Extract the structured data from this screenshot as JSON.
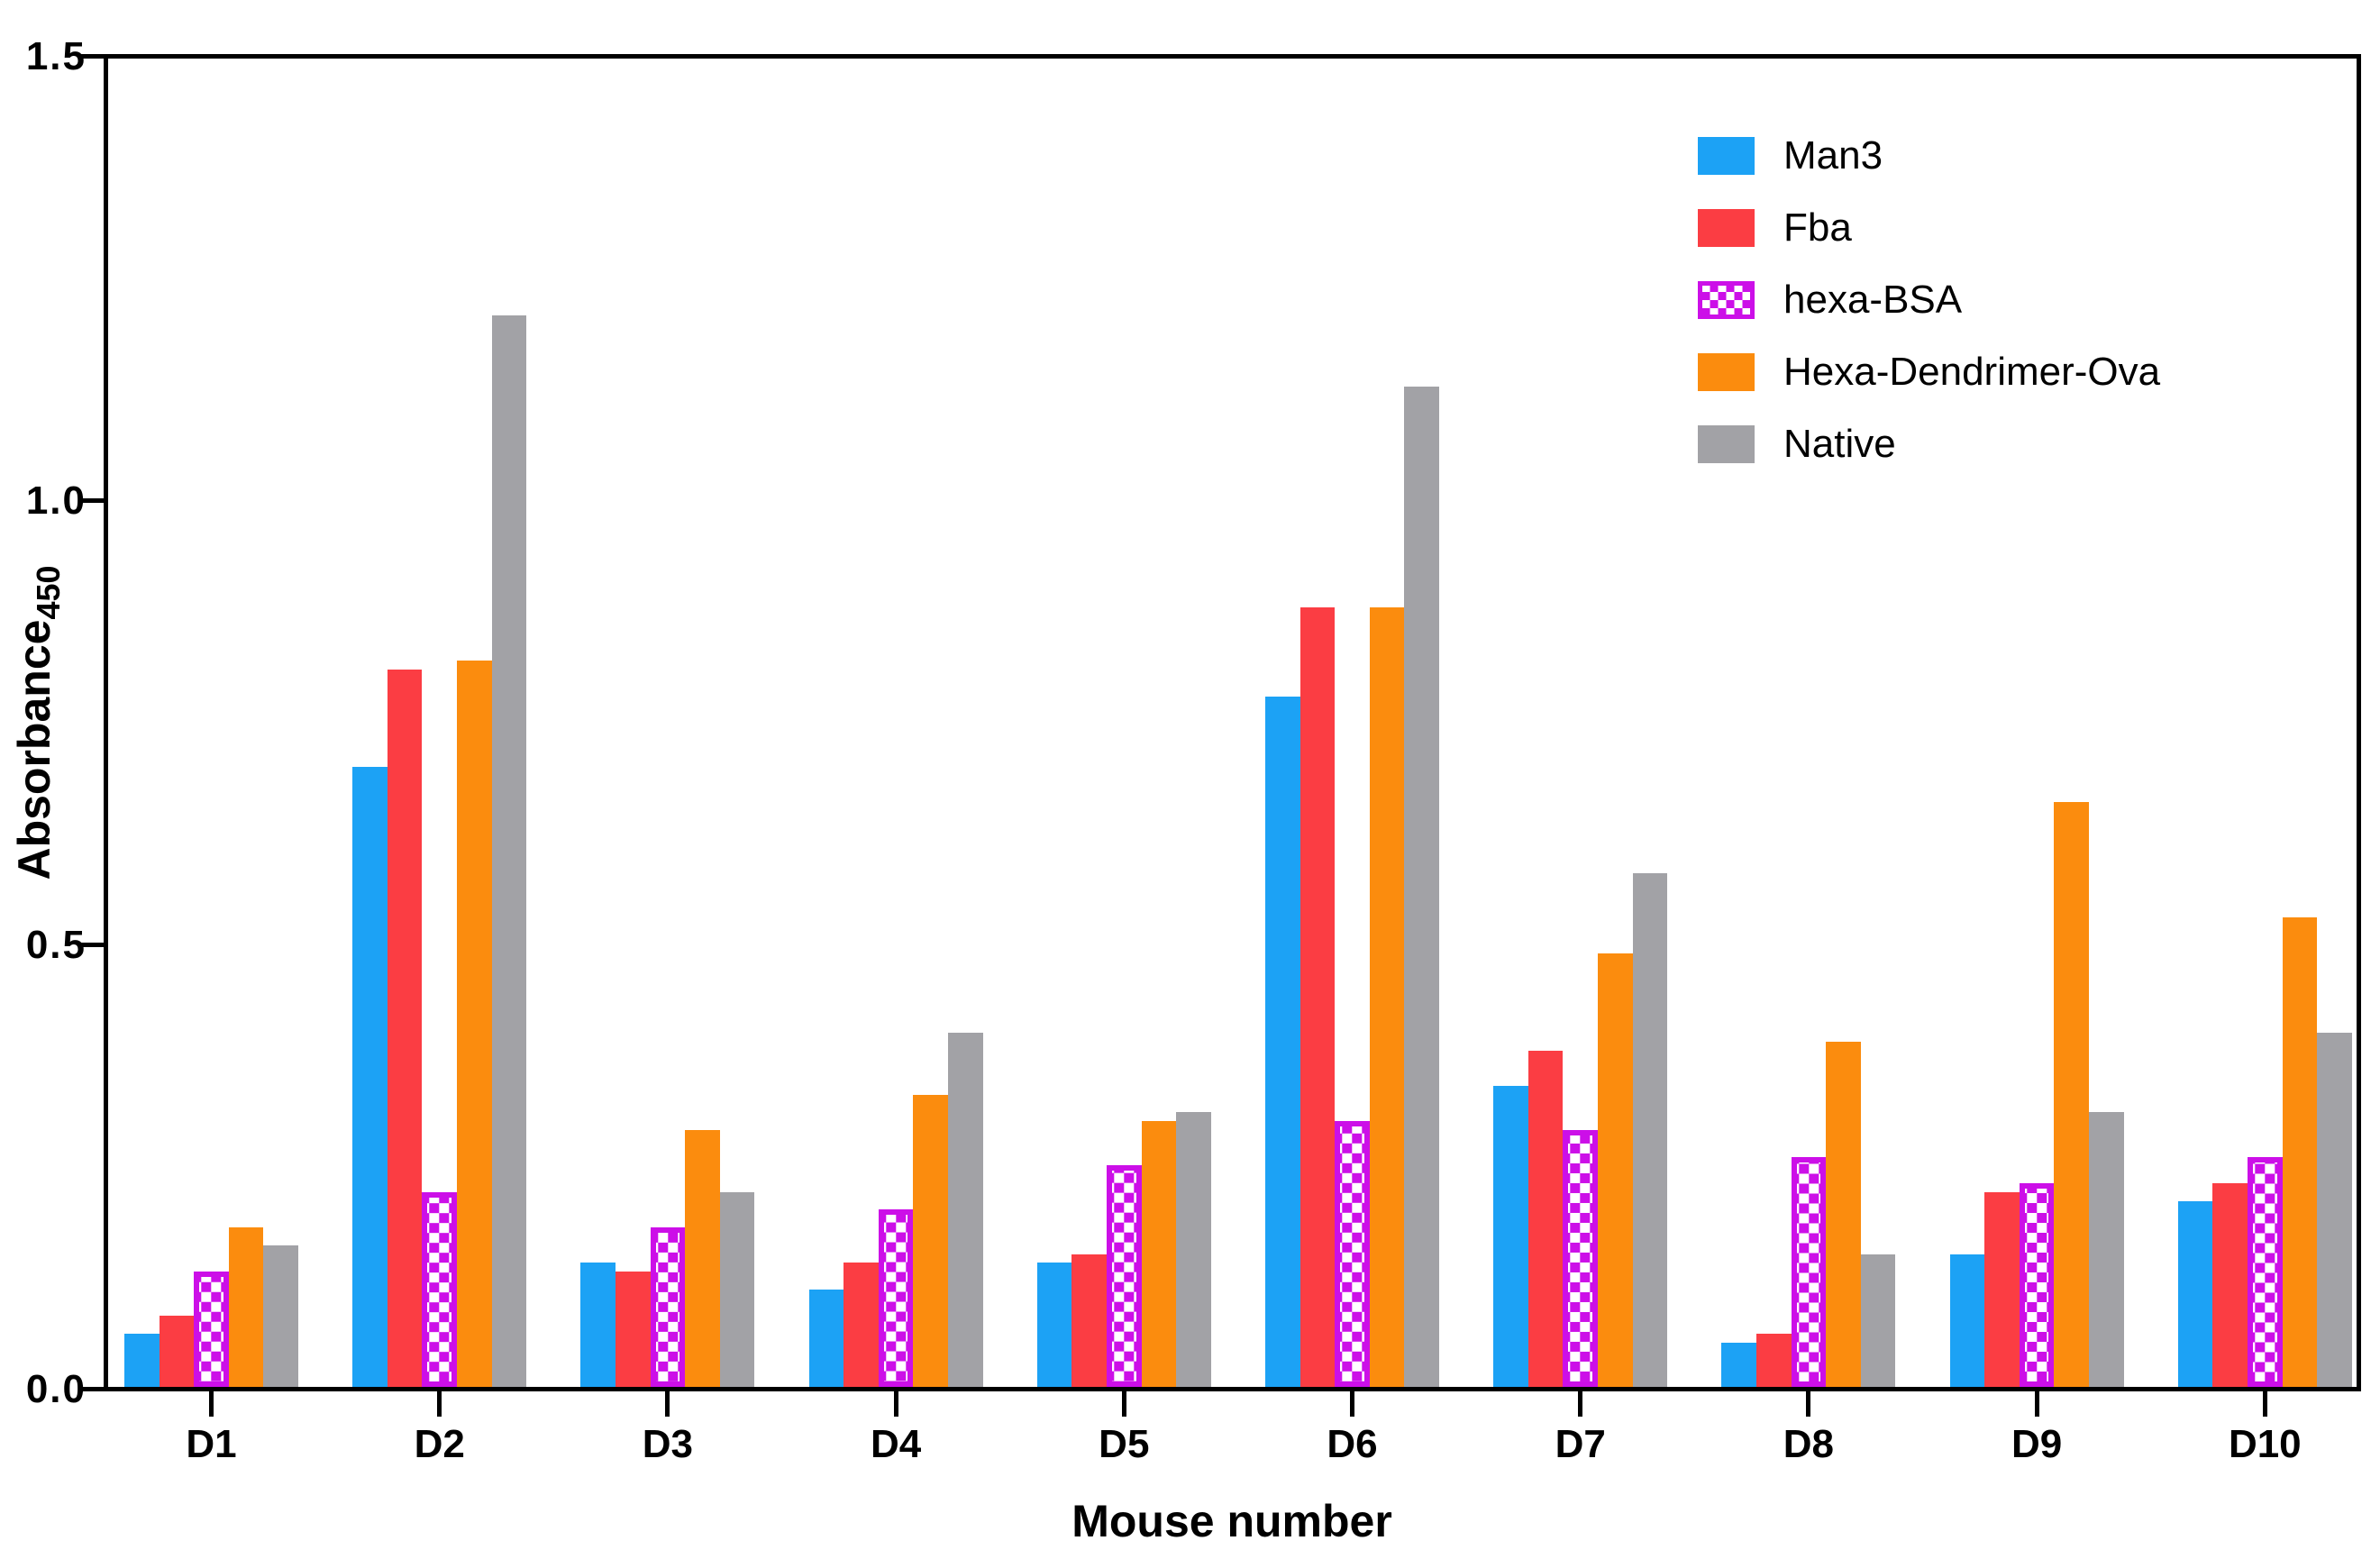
{
  "chart_data": {
    "type": "bar",
    "title": "",
    "xlabel": "Mouse number",
    "ylabel": "Absorbance",
    "ylabel_subscript": "450",
    "categories": [
      "D1",
      "D2",
      "D3",
      "D4",
      "D5",
      "D6",
      "D7",
      "D8",
      "D9",
      "D10"
    ],
    "series": [
      {
        "name": "Man3",
        "color": "#1CA2F5",
        "pattern": "solid",
        "values": [
          0.06,
          0.7,
          0.14,
          0.11,
          0.14,
          0.78,
          0.34,
          0.05,
          0.15,
          0.21
        ]
      },
      {
        "name": "Fba",
        "color": "#FB3D43",
        "pattern": "solid",
        "values": [
          0.08,
          0.81,
          0.13,
          0.14,
          0.15,
          0.88,
          0.38,
          0.06,
          0.22,
          0.23
        ]
      },
      {
        "name": "hexa-BSA",
        "color": "#CC0FE8",
        "pattern": "checker",
        "values": [
          0.13,
          0.22,
          0.18,
          0.2,
          0.25,
          0.3,
          0.29,
          0.26,
          0.23,
          0.26
        ]
      },
      {
        "name": "Hexa-Dendrimer-Ova",
        "color": "#FB8C0E",
        "pattern": "solid",
        "values": [
          0.18,
          0.82,
          0.29,
          0.33,
          0.3,
          0.88,
          0.49,
          0.39,
          0.66,
          0.53
        ]
      },
      {
        "name": "Native",
        "color": "#A2A2A6",
        "pattern": "solid",
        "values": [
          0.16,
          1.21,
          0.22,
          0.4,
          0.31,
          1.13,
          0.58,
          0.15,
          0.31,
          0.4
        ]
      }
    ],
    "ylim": [
      0,
      1.5
    ],
    "yticks": [
      0.0,
      0.5,
      1.0,
      1.5
    ],
    "ytick_labels": [
      "0.0",
      "0.5",
      "1.0",
      "1.5"
    ],
    "legend_position": "top-right",
    "grid": false,
    "axis_color": "#000000",
    "background_color": "#ffffff"
  }
}
